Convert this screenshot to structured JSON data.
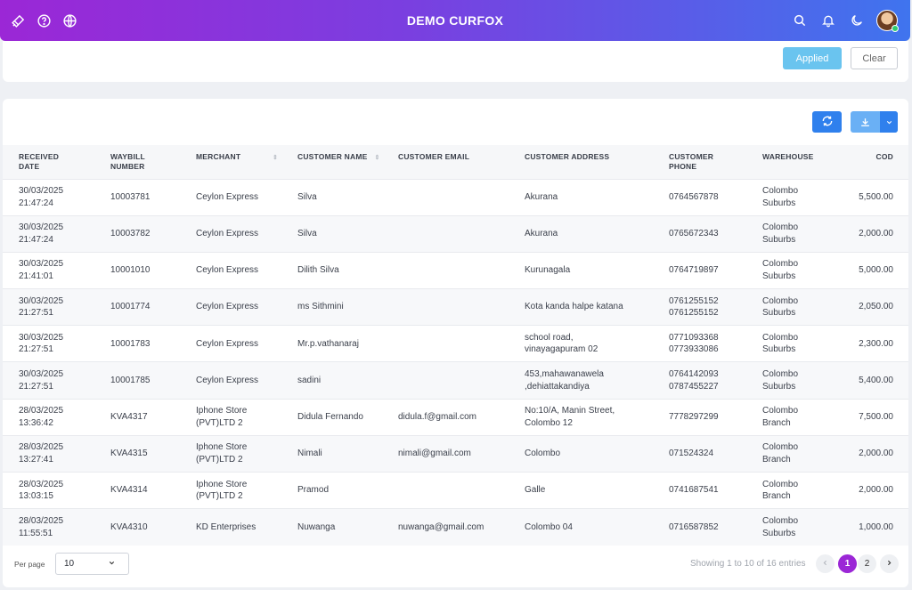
{
  "header": {
    "title": "DEMO CURFOX"
  },
  "filters": {
    "applied_label": "Applied",
    "clear_label": "Clear"
  },
  "columns": [
    {
      "label": "RECEIVED DATE"
    },
    {
      "label": "WAYBILL NUMBER"
    },
    {
      "label": "MERCHANT"
    },
    {
      "label": "CUSTOMER NAME"
    },
    {
      "label": "CUSTOMER EMAIL"
    },
    {
      "label": "CUSTOMER ADDRESS"
    },
    {
      "label": "CUSTOMER PHONE"
    },
    {
      "label": "WAREHOUSE"
    },
    {
      "label": "COD"
    }
  ],
  "rows": [
    {
      "date": "30/03/2025",
      "time": "21:47:24",
      "waybill": "10003781",
      "merchant": "Ceylon Express",
      "customer": "Silva",
      "email": "",
      "address": "Akurana",
      "phone": "0764567878",
      "warehouse": "Colombo Suburbs",
      "cod": "5,500.00"
    },
    {
      "date": "30/03/2025",
      "time": "21:47:24",
      "waybill": "10003782",
      "merchant": "Ceylon Express",
      "customer": "Silva",
      "email": "",
      "address": "Akurana",
      "phone": "0765672343",
      "warehouse": "Colombo Suburbs",
      "cod": "2,000.00"
    },
    {
      "date": "30/03/2025",
      "time": "21:41:01",
      "waybill": "10001010",
      "merchant": "Ceylon Express",
      "customer": "Dilith Silva",
      "email": "",
      "address": "Kurunagala",
      "phone": "0764719897",
      "warehouse": "Colombo Suburbs",
      "cod": "5,000.00"
    },
    {
      "date": "30/03/2025",
      "time": "21:27:51",
      "waybill": "10001774",
      "merchant": "Ceylon Express",
      "customer": "ms Sithmini",
      "email": "",
      "address": "Kota kanda halpe katana",
      "phone": "0761255152 0761255152",
      "warehouse": "Colombo Suburbs",
      "cod": "2,050.00"
    },
    {
      "date": "30/03/2025",
      "time": "21:27:51",
      "waybill": "10001783",
      "merchant": "Ceylon Express",
      "customer": "Mr.p.vathanaraj",
      "email": "",
      "address": "school road, vinayagapuram 02",
      "phone": "0771093368 0773933086",
      "warehouse": "Colombo Suburbs",
      "cod": "2,300.00"
    },
    {
      "date": "30/03/2025",
      "time": "21:27:51",
      "waybill": "10001785",
      "merchant": "Ceylon Express",
      "customer": "sadini",
      "email": "",
      "address": "453,mahawanawela ,dehiattakandiya",
      "phone": "0764142093 0787455227",
      "warehouse": "Colombo Suburbs",
      "cod": "5,400.00"
    },
    {
      "date": "28/03/2025",
      "time": "13:36:42",
      "waybill": "KVA4317",
      "merchant": "Iphone Store (PVT)LTD 2",
      "customer": "Didula Fernando",
      "email": "didula.f@gmail.com",
      "address": "No:10/A, Manin Street, Colombo 12",
      "phone": "7778297299",
      "warehouse": "Colombo Branch",
      "cod": "7,500.00"
    },
    {
      "date": "28/03/2025",
      "time": "13:27:41",
      "waybill": "KVA4315",
      "merchant": "Iphone Store (PVT)LTD 2",
      "customer": "Nimali",
      "email": "nimali@gmail.com",
      "address": "Colombo",
      "phone": "071524324",
      "warehouse": "Colombo Branch",
      "cod": "2,000.00"
    },
    {
      "date": "28/03/2025",
      "time": "13:03:15",
      "waybill": "KVA4314",
      "merchant": "Iphone Store (PVT)LTD 2",
      "customer": "Pramod",
      "email": "",
      "address": "Galle",
      "phone": "0741687541",
      "warehouse": "Colombo Branch",
      "cod": "2,000.00"
    },
    {
      "date": "28/03/2025",
      "time": "11:55:51",
      "waybill": "KVA4310",
      "merchant": "KD Enterprises",
      "customer": "Nuwanga",
      "email": "nuwanga@gmail.com",
      "address": "Colombo 04",
      "phone": "0716587852",
      "warehouse": "Colombo Suburbs",
      "cod": "1,000.00"
    }
  ],
  "footer": {
    "per_page_label": "Per page",
    "per_page_value": "10",
    "showing_text": "Showing 1 to 10 of 16 entries",
    "pages": [
      "1",
      "2"
    ]
  },
  "colors": {
    "brand_start": "#9b27d6",
    "brand_end": "#3f74ee",
    "primary": "#2f80ed",
    "applied": "#6ac4ef"
  },
  "icons": [
    "brush-icon",
    "help-icon",
    "globe-icon",
    "search-icon",
    "bell-icon",
    "moon-icon",
    "refresh-icon",
    "download-icon",
    "chevron-down-icon",
    "chevron-left-icon",
    "chevron-right-icon"
  ]
}
